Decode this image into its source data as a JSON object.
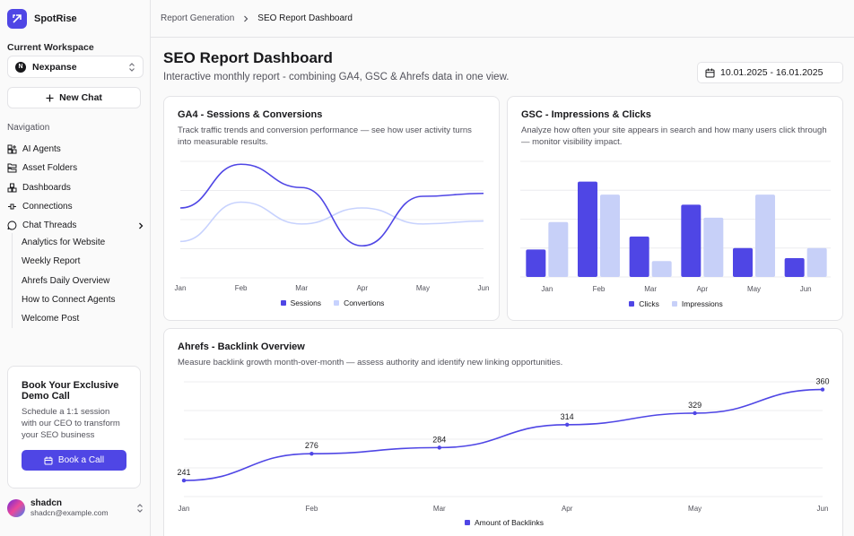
{
  "app": {
    "name": "SpotRise"
  },
  "workspace": {
    "label": "Current Workspace",
    "name": "Nexpanse",
    "initial": "N"
  },
  "new_chat": "New Chat",
  "navigation": {
    "label": "Navigation",
    "items": [
      {
        "label": "AI Agents",
        "icon": "agents-icon"
      },
      {
        "label": "Asset Folders",
        "icon": "folders-icon"
      },
      {
        "label": "Dashboards",
        "icon": "dashboards-icon"
      },
      {
        "label": "Connections",
        "icon": "connections-icon"
      },
      {
        "label": "Chat Threads",
        "icon": "chat-icon"
      }
    ],
    "threads": [
      "Analytics for Website",
      "Weekly Report",
      "Ahrefs Daily Overview",
      "How to Connect Agents",
      "Welcome Post"
    ]
  },
  "promo": {
    "title": "Book Your Exclusive Demo Call",
    "text": "Schedule a 1:1 session with our CEO to transform your SEO business",
    "button": "Book a Call"
  },
  "user": {
    "name": "shadcn",
    "email": "shadcn@example.com"
  },
  "breadcrumb": {
    "parent": "Report Generation",
    "current": "SEO Report Dashboard"
  },
  "page": {
    "title": "SEO Report Dashboard",
    "subtitle": "Interactive monthly report - combining GA4, GSC & Ahrefs data in one view.",
    "date_range": "10.01.2025 - 16.01.2025"
  },
  "colors": {
    "accent": "#4f46e5",
    "accent_light": "#c7d2fe",
    "bar_light": "#c7d0f8"
  },
  "cards": {
    "ga4": {
      "title": "GA4 - Sessions & Conversions",
      "desc": "Track traffic trends and conversion performance — see how user activity turns into measurable results."
    },
    "gsc": {
      "title": "GSC - Impressions & Clicks",
      "desc": "Analyze how often your site appears in search and how many users click through — monitor visibility impact."
    },
    "ahrefs": {
      "title": "Ahrefs - Backlink Overview",
      "desc": "Measure backlink growth month-over-month — assess authority and identify new linking opportunities."
    }
  },
  "chart_data": [
    {
      "type": "line",
      "title": "GA4 - Sessions & Conversions",
      "categories": [
        "Jan",
        "Feb",
        "Mar",
        "Apr",
        "May",
        "Jun"
      ],
      "ylim": [
        0,
        400
      ],
      "series": [
        {
          "name": "Sessions",
          "values": [
            240,
            390,
            310,
            110,
            280,
            290
          ]
        },
        {
          "name": "Convertions",
          "values": [
            125,
            260,
            185,
            240,
            185,
            195
          ]
        }
      ]
    },
    {
      "type": "bar",
      "title": "GSC - Impressions & Clicks",
      "categories": [
        "Jan",
        "Feb",
        "Mar",
        "Apr",
        "May",
        "Jun"
      ],
      "ylim": [
        0,
        400
      ],
      "series": [
        {
          "name": "Clicks",
          "values": [
            95,
            330,
            140,
            250,
            100,
            65
          ]
        },
        {
          "name": "Impressions",
          "values": [
            190,
            285,
            55,
            205,
            285,
            100
          ]
        }
      ]
    },
    {
      "type": "line",
      "title": "Ahrefs - Backlink Overview",
      "categories": [
        "Jan",
        "Feb",
        "Mar",
        "Apr",
        "May",
        "Jun"
      ],
      "ylim": [
        220,
        370
      ],
      "series": [
        {
          "name": "Amount of Backlinks",
          "values": [
            241,
            276,
            284,
            314,
            329,
            360
          ]
        }
      ]
    }
  ]
}
